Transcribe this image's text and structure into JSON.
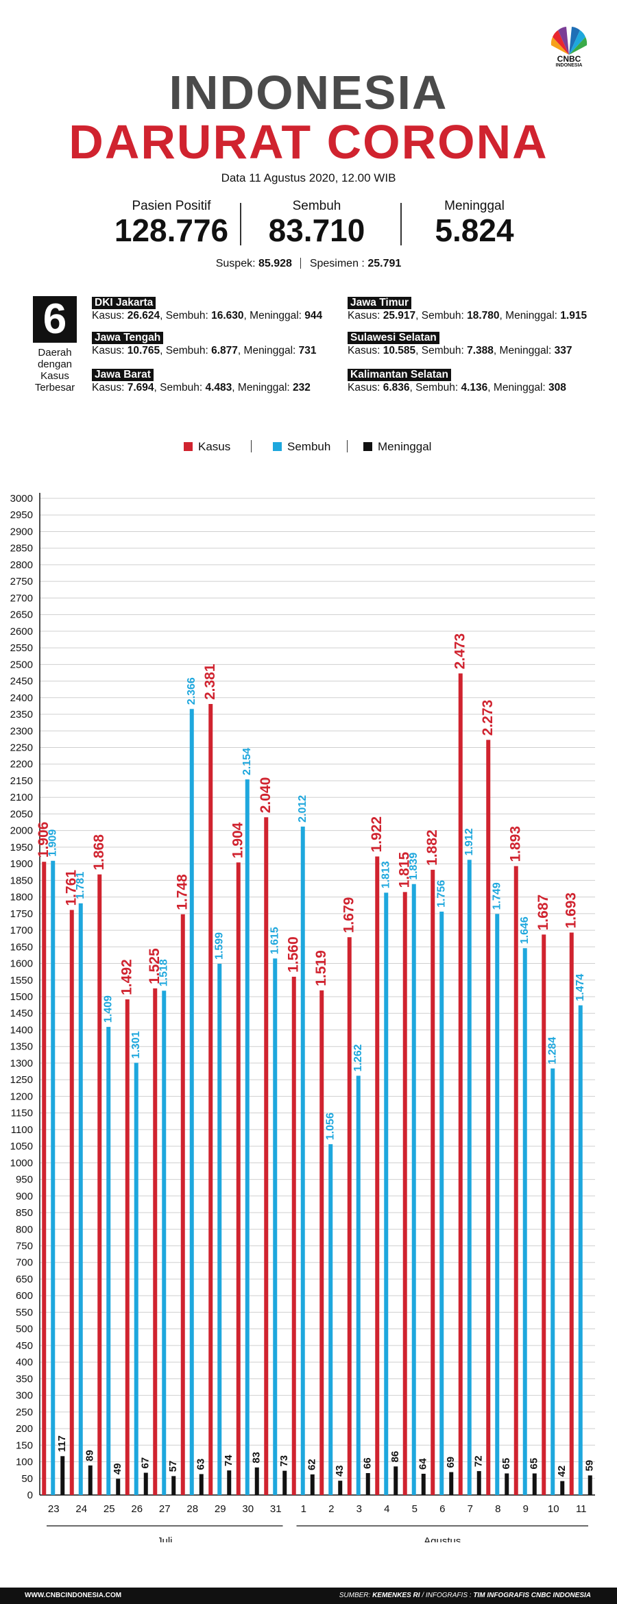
{
  "header": {
    "logo_text": "CNBC",
    "logo_sub": "INDONESIA",
    "title_line1": "INDONESIA",
    "title_line2": "DARURAT CORONA",
    "date": "Data 11 Agustus 2020, 12.00 WIB"
  },
  "stats": [
    {
      "label": "Pasien Positif",
      "value": "128.776"
    },
    {
      "label": "Sembuh",
      "value": "83.710"
    },
    {
      "label": "Meninggal",
      "value": "5.824"
    }
  ],
  "substats": {
    "suspek_label": "Suspek:",
    "suspek_value": "85.928",
    "spesimen_label": "Spesimen :",
    "spesimen_value": "25.791"
  },
  "top_regions": {
    "count": "6",
    "caption": [
      "Daerah",
      "dengan",
      "Kasus",
      "Terbesar"
    ],
    "regions": [
      {
        "name": "DKI Jakarta",
        "kasus": "26.624",
        "sembuh": "16.630",
        "meninggal": "944"
      },
      {
        "name": "Jawa Tengah",
        "kasus": "10.765",
        "sembuh": "6.877",
        "meninggal": "731"
      },
      {
        "name": "Jawa Barat",
        "kasus": "7.694",
        "sembuh": "4.483",
        "meninggal": "232"
      },
      {
        "name": "Jawa Timur",
        "kasus": "25.917",
        "sembuh": "18.780",
        "meninggal": "1.915"
      },
      {
        "name": "Sulawesi Selatan",
        "kasus": "10.585",
        "sembuh": "7.388",
        "meninggal": "337"
      },
      {
        "name": "Kalimantan Selatan",
        "kasus": "6.836",
        "sembuh": "4.136",
        "meninggal": "308"
      }
    ],
    "kasus_label": "Kasus:",
    "sembuh_label": "Sembuh:",
    "meninggal_label": "Meninggal:"
  },
  "colors": {
    "kasus": "#d0232f",
    "sembuh": "#1ea7dd",
    "meninggal": "#111111"
  },
  "chart_data": {
    "type": "bar",
    "categories": [
      "23",
      "24",
      "25",
      "26",
      "27",
      "28",
      "29",
      "30",
      "31",
      "1",
      "2",
      "3",
      "4",
      "5",
      "6",
      "7",
      "8",
      "9",
      "10",
      "11"
    ],
    "groups": [
      {
        "label": "Juli",
        "categories": [
          "23",
          "24",
          "25",
          "26",
          "27",
          "28",
          "29",
          "30",
          "31"
        ]
      },
      {
        "label": "Agustus",
        "categories": [
          "1",
          "2",
          "3",
          "4",
          "5",
          "6",
          "7",
          "8",
          "9",
          "10",
          "11"
        ]
      }
    ],
    "series": [
      {
        "name": "Kasus",
        "values": [
          1906,
          1761,
          1868,
          1492,
          1525,
          1748,
          2381,
          1904,
          2040,
          1560,
          1519,
          1679,
          1922,
          1815,
          1882,
          2473,
          2273,
          1893,
          1687,
          1693
        ],
        "labels": [
          "1.906",
          "1.761",
          "1.868",
          "1.492",
          "1.525",
          "1.748",
          "2.381",
          "1.904",
          "2.040",
          "1.560",
          "1.519",
          "1.679",
          "1.922",
          "1.815",
          "1.882",
          "2.473",
          "2.273",
          "1.893",
          "1.687",
          "1.693"
        ]
      },
      {
        "name": "Sembuh",
        "values": [
          1909,
          1781,
          1409,
          1301,
          1518,
          2366,
          1599,
          2154,
          1615,
          2012,
          1056,
          1262,
          1813,
          1839,
          1756,
          1912,
          1749,
          1646,
          1284,
          1474
        ],
        "labels": [
          "1.909",
          "1.781",
          "1.409",
          "1.301",
          "1.518",
          "2.366",
          "1.599",
          "2.154",
          "1.615",
          "2.012",
          "1.056",
          "1.262",
          "1.813",
          "1.839",
          "1.756",
          "1.912",
          "1.749",
          "1.646",
          "1.284",
          "1.474"
        ]
      },
      {
        "name": "Meninggal",
        "values": [
          117,
          89,
          49,
          67,
          57,
          63,
          74,
          83,
          73,
          62,
          43,
          66,
          86,
          64,
          69,
          72,
          65,
          65,
          42,
          59
        ],
        "labels": [
          "117",
          "89",
          "49",
          "67",
          "57",
          "63",
          "74",
          "83",
          "73",
          "62",
          "43",
          "66",
          "86",
          "64",
          "69",
          "72",
          "65",
          "65",
          "42",
          "59"
        ]
      }
    ],
    "yticks": [
      0,
      50,
      100,
      150,
      200,
      250,
      300,
      350,
      400,
      450,
      500,
      550,
      600,
      650,
      700,
      750,
      800,
      850,
      900,
      950,
      1000,
      1050,
      1100,
      1150,
      1200,
      1250,
      1300,
      1350,
      1400,
      1450,
      1500,
      1550,
      1600,
      1650,
      1700,
      1750,
      1800,
      1850,
      1900,
      1950,
      2000,
      2050,
      2100,
      2150,
      2200,
      2250,
      2300,
      2350,
      2400,
      2450,
      2500,
      2550,
      2600,
      2650,
      2700,
      2750,
      2800,
      2850,
      2900,
      2950,
      3000
    ],
    "ylim": [
      0,
      3000
    ],
    "grid": true,
    "legend": "top-center"
  },
  "footer": {
    "site": "WWW.CNBCINDONESIA.COM",
    "sumber_label": "SUMBER:",
    "sumber_value": "KEMENKES RI",
    "infografis_label": "/ INFOGRAFIS :",
    "infografis_value": "TIM INFOGRAFIS CNBC INDONESIA"
  }
}
